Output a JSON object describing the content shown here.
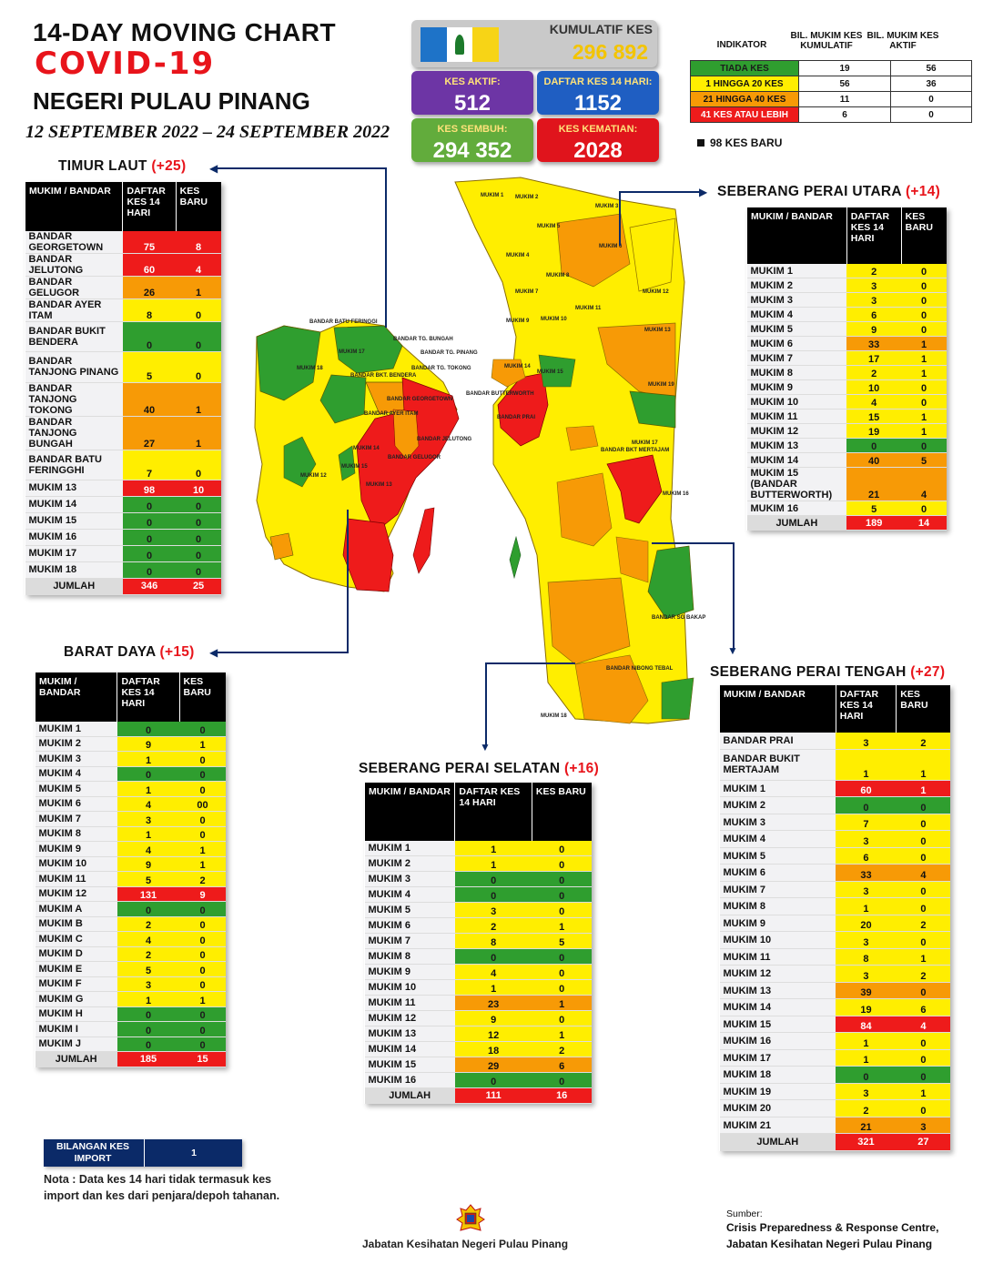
{
  "header": {
    "title": "14-DAY MOVING CHART",
    "covid": "COVID-19",
    "state": "NEGERI PULAU PINANG",
    "date_range": "12 SEPTEMBER 2022 – 24 SEPTEMBER 2022"
  },
  "stats": {
    "kumulatif_label": "KUMULATIF KES",
    "kumulatif_value": "296 892",
    "aktif_label": "KES AKTIF:",
    "aktif_value": "512",
    "daftar_label": "DAFTAR KES 14 HARI:",
    "daftar_value": "1152",
    "sembuh_label": "KES SEMBUH:",
    "sembuh_value": "294 352",
    "kematian_label": "KES KEMATIAN:",
    "kematian_value": "2028"
  },
  "legend": {
    "h_indikator": "INDIKATOR",
    "h_kumulatif": "BIL. MUKIM KES KUMULATIF",
    "h_aktif": "BIL. MUKIM KES AKTIF",
    "rows": [
      {
        "label": "TIADA KES",
        "kum": "19",
        "akt": "56",
        "color": "green"
      },
      {
        "label": "1 HINGGA 20 KES",
        "kum": "56",
        "akt": "36",
        "color": "yellow"
      },
      {
        "label": "21 HINGGA 40 KES",
        "kum": "11",
        "akt": "0",
        "color": "orange"
      },
      {
        "label": "41 KES ATAU LEBIH",
        "kum": "6",
        "akt": "0",
        "color": "red"
      }
    ],
    "new_cases_note": "98 KES BARU"
  },
  "colors": {
    "green": "#2f9e2f",
    "yellow": "#ffee00",
    "orange": "#f79a06",
    "red": "#ee1b1b",
    "navy": "#0b2a68"
  },
  "timur_laut": {
    "name": "TIMUR LAUT",
    "plus": "(+25)",
    "h1": "MUKIM / BANDAR",
    "h2": "DAFTAR KES 14 HARI",
    "h3": "KES BARU",
    "rows": [
      {
        "n": "BANDAR GEORGETOWN",
        "a": "75",
        "b": "8",
        "c": "red"
      },
      {
        "n": "BANDAR JELUTONG",
        "a": "60",
        "b": "4",
        "c": "red"
      },
      {
        "n": "BANDAR GELUGOR",
        "a": "26",
        "b": "1",
        "c": "orange"
      },
      {
        "n": "BANDAR AYER ITAM",
        "a": "8",
        "b": "0",
        "c": "yellow"
      },
      {
        "n": "BANDAR BUKIT BENDERA",
        "a": "0",
        "b": "0",
        "c": "green"
      },
      {
        "n": "BANDAR TANJONG PINANG",
        "a": "5",
        "b": "0",
        "c": "yellow"
      },
      {
        "n": "BANDAR TANJONG TOKONG",
        "a": "40",
        "b": "1",
        "c": "orange"
      },
      {
        "n": "BANDAR TANJONG BUNGAH",
        "a": "27",
        "b": "1",
        "c": "orange"
      },
      {
        "n": "BANDAR BATU FERINGGHI",
        "a": "7",
        "b": "0",
        "c": "yellow"
      },
      {
        "n": "MUKIM 13",
        "a": "98",
        "b": "10",
        "c": "red"
      },
      {
        "n": "MUKIM 14",
        "a": "0",
        "b": "0",
        "c": "green"
      },
      {
        "n": "MUKIM 15",
        "a": "0",
        "b": "0",
        "c": "green"
      },
      {
        "n": "MUKIM 16",
        "a": "0",
        "b": "0",
        "c": "green"
      },
      {
        "n": "MUKIM 17",
        "a": "0",
        "b": "0",
        "c": "green"
      },
      {
        "n": "MUKIM 18",
        "a": "0",
        "b": "0",
        "c": "green"
      }
    ],
    "total_label": "JUMLAH",
    "total_a": "346",
    "total_b": "25"
  },
  "barat_daya": {
    "name": "BARAT DAYA",
    "plus": "(+15)",
    "h1": "MUKIM / BANDAR",
    "h2": "DAFTAR KES 14 HARI",
    "h3": "KES BARU",
    "rows": [
      {
        "n": "MUKIM 1",
        "a": "0",
        "b": "0",
        "c": "green"
      },
      {
        "n": "MUKIM 2",
        "a": "9",
        "b": "1",
        "c": "yellow"
      },
      {
        "n": "MUKIM 3",
        "a": "1",
        "b": "0",
        "c": "yellow"
      },
      {
        "n": "MUKIM 4",
        "a": "0",
        "b": "0",
        "c": "green"
      },
      {
        "n": "MUKIM 5",
        "a": "1",
        "b": "0",
        "c": "yellow"
      },
      {
        "n": "MUKIM 6",
        "a": "4",
        "b": "00",
        "c": "yellow"
      },
      {
        "n": "MUKIM 7",
        "a": "3",
        "b": "0",
        "c": "yellow"
      },
      {
        "n": "MUKIM 8",
        "a": "1",
        "b": "0",
        "c": "yellow"
      },
      {
        "n": "MUKIM 9",
        "a": "4",
        "b": "1",
        "c": "yellow"
      },
      {
        "n": "MUKIM 10",
        "a": "9",
        "b": "1",
        "c": "yellow"
      },
      {
        "n": "MUKIM 11",
        "a": "5",
        "b": "2",
        "c": "yellow"
      },
      {
        "n": "MUKIM 12",
        "a": "131",
        "b": "9",
        "c": "red"
      },
      {
        "n": "MUKIM A",
        "a": "0",
        "b": "0",
        "c": "green"
      },
      {
        "n": "MUKIM B",
        "a": "2",
        "b": "0",
        "c": "yellow"
      },
      {
        "n": "MUKIM C",
        "a": "4",
        "b": "0",
        "c": "yellow"
      },
      {
        "n": "MUKIM D",
        "a": "2",
        "b": "0",
        "c": "yellow"
      },
      {
        "n": "MUKIM E",
        "a": "5",
        "b": "0",
        "c": "yellow"
      },
      {
        "n": "MUKIM F",
        "a": "3",
        "b": "0",
        "c": "yellow"
      },
      {
        "n": "MUKIM G",
        "a": "1",
        "b": "1",
        "c": "yellow"
      },
      {
        "n": "MUKIM H",
        "a": "0",
        "b": "0",
        "c": "green"
      },
      {
        "n": "MUKIM I",
        "a": "0",
        "b": "0",
        "c": "green"
      },
      {
        "n": "MUKIM J",
        "a": "0",
        "b": "0",
        "c": "green"
      }
    ],
    "total_label": "JUMLAH",
    "total_a": "185",
    "total_b": "15"
  },
  "spu": {
    "name": "SEBERANG PERAI UTARA",
    "plus": "(+14)",
    "h1": "MUKIM / BANDAR",
    "h2": "DAFTAR KES 14 HARI",
    "h3": "KES BARU",
    "rows": [
      {
        "n": "MUKIM 1",
        "a": "2",
        "b": "0",
        "c": "yellow"
      },
      {
        "n": "MUKIM 2",
        "a": "3",
        "b": "0",
        "c": "yellow"
      },
      {
        "n": "MUKIM 3",
        "a": "3",
        "b": "0",
        "c": "yellow"
      },
      {
        "n": "MUKIM 4",
        "a": "6",
        "b": "0",
        "c": "yellow"
      },
      {
        "n": "MUKIM 5",
        "a": "9",
        "b": "0",
        "c": "yellow"
      },
      {
        "n": "MUKIM 6",
        "a": "33",
        "b": "1",
        "c": "orange"
      },
      {
        "n": "MUKIM 7",
        "a": "17",
        "b": "1",
        "c": "yellow"
      },
      {
        "n": "MUKIM 8",
        "a": "2",
        "b": "1",
        "c": "yellow"
      },
      {
        "n": "MUKIM 9",
        "a": "10",
        "b": "0",
        "c": "yellow"
      },
      {
        "n": "MUKIM 10",
        "a": "4",
        "b": "0",
        "c": "yellow"
      },
      {
        "n": "MUKIM 11",
        "a": "15",
        "b": "1",
        "c": "yellow"
      },
      {
        "n": "MUKIM 12",
        "a": "19",
        "b": "1",
        "c": "yellow"
      },
      {
        "n": "MUKIM 13",
        "a": "0",
        "b": "0",
        "c": "green"
      },
      {
        "n": "MUKIM 14",
        "a": "40",
        "b": "5",
        "c": "orange"
      },
      {
        "n": "MUKIM 15 (BANDAR BUTTERWORTH)",
        "a": "21",
        "b": "4",
        "c": "orange"
      },
      {
        "n": "MUKIM 16",
        "a": "5",
        "b": "0",
        "c": "yellow"
      }
    ],
    "total_label": "JUMLAH",
    "total_a": "189",
    "total_b": "14"
  },
  "spt": {
    "name": "SEBERANG PERAI TENGAH",
    "plus": "(+27)",
    "h1": "MUKIM / BANDAR",
    "h2": "DAFTAR KES 14 HARI",
    "h3": "KES BARU",
    "rows": [
      {
        "n": "BANDAR PRAI",
        "a": "3",
        "b": "2",
        "c": "yellow"
      },
      {
        "n": "BANDAR BUKIT MERTAJAM",
        "a": "1",
        "b": "1",
        "c": "yellow"
      },
      {
        "n": "MUKIM 1",
        "a": "60",
        "b": "1",
        "c": "red"
      },
      {
        "n": "MUKIM 2",
        "a": "0",
        "b": "0",
        "c": "green"
      },
      {
        "n": "MUKIM 3",
        "a": "7",
        "b": "0",
        "c": "yellow"
      },
      {
        "n": "MUKIM 4",
        "a": "3",
        "b": "0",
        "c": "yellow"
      },
      {
        "n": "MUKIM 5",
        "a": "6",
        "b": "0",
        "c": "yellow"
      },
      {
        "n": "MUKIM 6",
        "a": "33",
        "b": "4",
        "c": "orange"
      },
      {
        "n": "MUKIM 7",
        "a": "3",
        "b": "0",
        "c": "yellow"
      },
      {
        "n": "MUKIM 8",
        "a": "1",
        "b": "0",
        "c": "yellow"
      },
      {
        "n": "MUKIM 9",
        "a": "20",
        "b": "2",
        "c": "yellow"
      },
      {
        "n": "MUKIM 10",
        "a": "3",
        "b": "0",
        "c": "yellow"
      },
      {
        "n": "MUKIM 11",
        "a": "8",
        "b": "1",
        "c": "yellow"
      },
      {
        "n": "MUKIM 12",
        "a": "3",
        "b": "2",
        "c": "yellow"
      },
      {
        "n": "MUKIM 13",
        "a": "39",
        "b": "0",
        "c": "orange"
      },
      {
        "n": "MUKIM 14",
        "a": "19",
        "b": "6",
        "c": "yellow"
      },
      {
        "n": "MUKIM 15",
        "a": "84",
        "b": "4",
        "c": "red"
      },
      {
        "n": "MUKIM 16",
        "a": "1",
        "b": "0",
        "c": "yellow"
      },
      {
        "n": "MUKIM 17",
        "a": "1",
        "b": "0",
        "c": "yellow"
      },
      {
        "n": "MUKIM 18",
        "a": "0",
        "b": "0",
        "c": "green"
      },
      {
        "n": "MUKIM 19",
        "a": "3",
        "b": "1",
        "c": "yellow"
      },
      {
        "n": "MUKIM 20",
        "a": "2",
        "b": "0",
        "c": "yellow"
      },
      {
        "n": "MUKIM 21",
        "a": "21",
        "b": "3",
        "c": "orange"
      }
    ],
    "total_label": "JUMLAH",
    "total_a": "321",
    "total_b": "27"
  },
  "sps": {
    "name": "SEBERANG PERAI SELATAN",
    "plus": "(+16)",
    "h1": "MUKIM / BANDAR",
    "h2": "DAFTAR KES 14 HARI",
    "h3": "KES BARU",
    "rows": [
      {
        "n": "MUKIM 1",
        "a": "1",
        "b": "0",
        "c": "yellow"
      },
      {
        "n": "MUKIM 2",
        "a": "1",
        "b": "0",
        "c": "yellow"
      },
      {
        "n": "MUKIM 3",
        "a": "0",
        "b": "0",
        "c": "green"
      },
      {
        "n": "MUKIM 4",
        "a": "0",
        "b": "0",
        "c": "green"
      },
      {
        "n": "MUKIM 5",
        "a": "3",
        "b": "0",
        "c": "yellow"
      },
      {
        "n": "MUKIM 6",
        "a": "2",
        "b": "1",
        "c": "yellow"
      },
      {
        "n": "MUKIM 7",
        "a": "8",
        "b": "5",
        "c": "yellow"
      },
      {
        "n": "MUKIM 8",
        "a": "0",
        "b": "0",
        "c": "green"
      },
      {
        "n": "MUKIM 9",
        "a": "4",
        "b": "0",
        "c": "yellow"
      },
      {
        "n": "MUKIM 10",
        "a": "1",
        "b": "0",
        "c": "yellow"
      },
      {
        "n": "MUKIM 11",
        "a": "23",
        "b": "1",
        "c": "orange"
      },
      {
        "n": "MUKIM 12",
        "a": "9",
        "b": "0",
        "c": "yellow"
      },
      {
        "n": "MUKIM 13",
        "a": "12",
        "b": "1",
        "c": "yellow"
      },
      {
        "n": "MUKIM 14",
        "a": "18",
        "b": "2",
        "c": "yellow"
      },
      {
        "n": "MUKIM 15",
        "a": "29",
        "b": "6",
        "c": "orange"
      },
      {
        "n": "MUKIM 16",
        "a": "0",
        "b": "0",
        "c": "green"
      }
    ],
    "total_label": "JUMLAH",
    "total_a": "111",
    "total_b": "16"
  },
  "import": {
    "label": "BILANGAN KES IMPORT",
    "value": "1"
  },
  "note": "Nota : Data kes 14 hari tidak termasuk kes import dan kes dari penjara/depoh tahanan.",
  "footer": {
    "dept": "Jabatan Kesihatan Negeri Pulau Pinang",
    "source_label": "Sumber:",
    "source_1": "Crisis Preparedness & Response Centre,",
    "source_2": "Jabatan Kesihatan Negeri Pulau Pinang"
  },
  "map_labels": {
    "island": [
      "BANDAR BATU FERINGGI",
      "BANDAR TG. BUNGAH",
      "BANDAR TG. PINANG",
      "BANDAR TG. TOKONG",
      "BANDAR JELUTONG",
      "BANDAR GEORGETOWN",
      "BANDAR GELUGOR",
      "BANDAR AYER ITAM",
      "BANDAR BKT. BENDERA",
      "MUKIM 13",
      "MUKIM 12",
      "MUKIM 14",
      "MUKIM 15",
      "MUKIM 17",
      "MUKIM 18"
    ],
    "mainland": [
      "MUKIM 1",
      "MUKIM 2",
      "MUKIM 3",
      "MUKIM 4",
      "MUKIM 5",
      "MUKIM 6",
      "MUKIM 7",
      "MUKIM 8",
      "MUKIM 9",
      "MUKIM 10",
      "MUKIM 11",
      "MUKIM 12",
      "MUKIM 13",
      "MUKIM 14",
      "MUKIM 15",
      "MUKIM 16",
      "MUKIM 17",
      "MUKIM 18",
      "MUKIM 19",
      "BANDAR BUTTERWORTH",
      "BANDAR PRAI",
      "BANDAR BKT MERTAJAM",
      "BANDAR SG BAKAP",
      "BANDAR NIBONG TEBAL"
    ]
  }
}
